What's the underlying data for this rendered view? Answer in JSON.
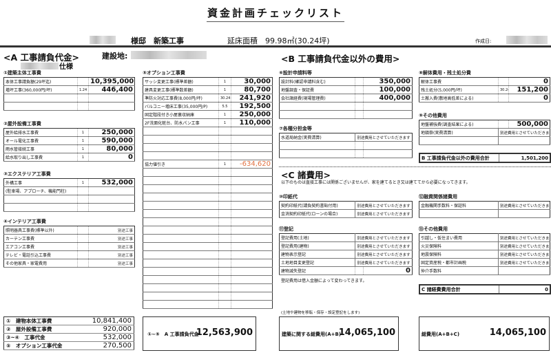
{
  "header": {
    "title": "資金計画チェックリスト",
    "project": "様邸　新築工事",
    "floor_area": "延床面積　99.98㎡(30.24坪)",
    "created_label": "作成日:",
    "site_label": "建設地:",
    "spec_suffix": "仕様"
  },
  "section_a": {
    "heading": "<A 工事請負代金>"
  },
  "section_b": {
    "heading": "<B 工事請負代金以外の費用>"
  },
  "section_c": {
    "heading": "<C 諸費用>",
    "note": "以下のものは直接工事には関係ございませんが、家を建てるとき又は建ててから必要になってきます。"
  },
  "tables": [
    {
      "id": "s1",
      "title": "①建築主体工事費",
      "rows": [
        {
          "label": "本体工事請負額(29坪迄)",
          "qty": "",
          "value": "10,395,000"
        },
        {
          "label": "増坪工事(360,000円/坪)",
          "qty": "1.24",
          "value": "446,400"
        },
        {
          "label": "",
          "qty": "",
          "value": ""
        },
        {
          "label": "",
          "qty": "",
          "value": ""
        }
      ]
    },
    {
      "id": "s2",
      "title": "②屋外設備工事費",
      "rows": [
        {
          "label": "屋外給排水工事費",
          "qty": "1",
          "value": "250,000"
        },
        {
          "label": "オール電化工事費",
          "qty": "1",
          "value": "590,000"
        },
        {
          "label": "雨水管接続工事",
          "qty": "1",
          "value": "80,000"
        },
        {
          "label": "給水取り出し工事費",
          "qty": "1",
          "value": "0"
        }
      ]
    },
    {
      "id": "s3",
      "title": "③エクステリア工事費",
      "rows": [
        {
          "label": "外構工事",
          "qty": "1",
          "value": "532,000"
        },
        {
          "label": "(駐車場、アプローチ、機能門柱)",
          "qty": "",
          "value": ""
        },
        {
          "label": "",
          "qty": "",
          "value": ""
        },
        {
          "label": "",
          "qty": "",
          "value": ""
        }
      ]
    },
    {
      "id": "s4",
      "title": "④インテリア工事費",
      "rows": [
        {
          "label": "照明器具工事費(標準以外)",
          "qty": "",
          "value": "別途工事",
          "note": true
        },
        {
          "label": "カーテン工事費",
          "qty": "",
          "value": "別途工事",
          "note": true
        },
        {
          "label": "エアコン工事費",
          "qty": "",
          "value": "別途工事",
          "note": true
        },
        {
          "label": "テレビ・電話引込工事費",
          "qty": "",
          "value": "別途工事",
          "note": true
        },
        {
          "label": "その他家具・家電費用",
          "qty": "",
          "value": "別途工事",
          "note": true
        }
      ]
    },
    {
      "id": "s5",
      "title": "⑤オプション工事費",
      "rows": [
        {
          "label": "サッシ変更工事(標準差額)",
          "qty": "1",
          "value": "30,000"
        },
        {
          "label": "建具変更工事(標準数差額)",
          "qty": "1",
          "value": "80,700"
        },
        {
          "label": "準防火対応工事費(8,000円/坪)",
          "qty": "30.24",
          "value": "241,920"
        },
        {
          "label": "バルコニー増床工事(35,000円/P)",
          "qty": "5.5",
          "value": "192,500"
        },
        {
          "label": "固定階段付き小屋裏収納庫",
          "qty": "1",
          "value": "250,000"
        },
        {
          "label": "2F洗面化粧台、防水パン工事",
          "qty": "1",
          "value": "110,000"
        },
        {
          "label": "",
          "qty": "",
          "value": ""
        },
        {
          "label": "",
          "qty": "",
          "value": ""
        },
        {
          "label": "",
          "qty": "",
          "value": ""
        },
        {
          "label": "",
          "qty": "",
          "value": ""
        },
        {
          "label": "協力値引き",
          "qty": "1",
          "value": "-634,620",
          "negative": true
        },
        {
          "label": "",
          "qty": "",
          "value": ""
        },
        {
          "label": "",
          "qty": "",
          "value": ""
        },
        {
          "label": "",
          "qty": "",
          "value": ""
        },
        {
          "label": "",
          "qty": "",
          "value": ""
        },
        {
          "label": "",
          "qty": "",
          "value": ""
        },
        {
          "label": "",
          "qty": "",
          "value": ""
        },
        {
          "label": "",
          "qty": "",
          "value": ""
        },
        {
          "label": "",
          "qty": "",
          "value": ""
        },
        {
          "label": "",
          "qty": "",
          "value": ""
        },
        {
          "label": "",
          "qty": "",
          "value": ""
        },
        {
          "label": "",
          "qty": "",
          "value": ""
        },
        {
          "label": "",
          "qty": "",
          "value": ""
        },
        {
          "label": "",
          "qty": "",
          "value": ""
        },
        {
          "label": "",
          "qty": "",
          "value": ""
        },
        {
          "label": "",
          "qty": "",
          "value": ""
        },
        {
          "label": "",
          "qty": "",
          "value": ""
        },
        {
          "label": "",
          "qty": "",
          "value": ""
        }
      ]
    },
    {
      "id": "s6",
      "title": "⑥設計申請料等",
      "rows": [
        {
          "label": "設計料(確認申請料含む)",
          "qty": "",
          "value": "350,000"
        },
        {
          "label": "地盤調査・保証費",
          "qty": "",
          "value": "100,000"
        },
        {
          "label": "会社諸経費(現場管理費)",
          "qty": "",
          "value": "400,000"
        },
        {
          "label": "",
          "qty": "",
          "value": ""
        },
        {
          "label": "",
          "qty": "",
          "value": ""
        }
      ]
    },
    {
      "id": "s7",
      "title": "⑦各種分担金等",
      "rows": [
        {
          "label": "水道局納金(実費清算)",
          "qty": "",
          "value": "別途費用とさせていただきます",
          "span": true
        },
        {
          "label": "",
          "qty": "",
          "value": ""
        },
        {
          "label": "",
          "qty": "",
          "value": ""
        }
      ]
    },
    {
      "id": "s8",
      "title": "⑧解体費用・残土処分費",
      "rows": [
        {
          "label": "解体工事費",
          "qty": "",
          "value": "0"
        },
        {
          "label": "残土処分(5,000円/坪)",
          "qty": "30.24",
          "value": "151,200"
        },
        {
          "label": "土搬入費(敷地高低差による)",
          "qty": "",
          "value": "0"
        }
      ]
    },
    {
      "id": "s9",
      "title": "⑨その他費用",
      "rows": [
        {
          "label": "地盤補強費(調査結果による)",
          "qty": "",
          "value": "500,000"
        },
        {
          "label": "地鎮祭(実費清算)",
          "qty": "",
          "value": "別途費用とさせていただきます",
          "span": true
        },
        {
          "label": "",
          "qty": "",
          "value": "",
          "span": true
        }
      ]
    },
    {
      "id": "sb",
      "title": "",
      "total": true,
      "rows": [
        {
          "label": "B 工事請負代金以外の費用合計",
          "qty": "",
          "value": "1,501,200",
          "span": true,
          "bold": true
        }
      ]
    },
    {
      "id": "s10",
      "title": "⑩印紙代",
      "rows": [
        {
          "label": "契約印紙代(請負契約書貼付用)",
          "qty": "",
          "value": "別途費用とさせていただきます",
          "span": true
        },
        {
          "label": "金消契約印紙代(ローンの場合)",
          "qty": "",
          "value": "別途費用とさせていただきます",
          "span": true
        }
      ]
    },
    {
      "id": "s11",
      "title": "⑪登記",
      "rows": [
        {
          "label": "登記費用(土地)",
          "qty": "",
          "value": "別途費用とさせていただきます",
          "span": true
        },
        {
          "label": "登記費用(建物)",
          "qty": "",
          "value": "別途費用とさせていただきます",
          "span": true
        },
        {
          "label": "建物表示登記",
          "qty": "",
          "value": "別途費用とさせていただきます",
          "span": true
        },
        {
          "label": "土地地目変更登記",
          "qty": "",
          "value": "別途費用とさせていただきます",
          "span": true
        },
        {
          "label": "建物滅失登記",
          "qty": "",
          "value": "0"
        }
      ]
    },
    {
      "id": "s12",
      "title": "⑫融資関係諸費用",
      "rows": [
        {
          "label": "金融機関手数料・保証料",
          "qty": "",
          "value": "別途費用とさせていただきます",
          "span": true
        },
        {
          "label": "",
          "qty": "",
          "value": "",
          "span": true
        }
      ]
    },
    {
      "id": "s13",
      "title": "⑬その他費用",
      "rows": [
        {
          "label": "引越し・仮住まい費用",
          "qty": "",
          "value": "別途費用とさせていただきます",
          "span": true
        },
        {
          "label": "火災保険料",
          "qty": "",
          "value": "別途費用とさせていただきます",
          "span": true
        },
        {
          "label": "地震保険料",
          "qty": "",
          "value": "別途費用とさせていただきます",
          "span": true
        },
        {
          "label": "固定資産税・都市計画税",
          "qty": "",
          "value": "別途費用とさせていただきます",
          "span": true
        },
        {
          "label": "仲介手数料",
          "qty": "",
          "value": "",
          "span": true
        }
      ]
    },
    {
      "id": "sc",
      "title": "",
      "total": true,
      "rows": [
        {
          "label": "C 諸経費費用合計",
          "qty": "",
          "value": "0",
          "span": true,
          "bold": true
        }
      ]
    }
  ],
  "notes": {
    "registration": "登記費用は借入金額によって変わってきます。",
    "bottom": "(土地や建物を移転・保存・設定登記をします)"
  },
  "summary": [
    {
      "label": "①　建物本体工事費",
      "value": "10,841,400"
    },
    {
      "label": "②　屋外設備工事費",
      "value": "920,000"
    },
    {
      "label": "③~④　工事代金",
      "value": "532,000"
    },
    {
      "label": "⑤　オプション工事代金",
      "value": "270,500"
    }
  ],
  "totals": {
    "a": {
      "label": "①~⑤　A 工事請負代金",
      "value": "12,563,900"
    },
    "ab": {
      "label": "建築に関する総費用(A+B)",
      "value": "14,065,100"
    },
    "abc": {
      "label": "総費用(A+B+C)",
      "value": "14,065,100"
    }
  },
  "colors": {
    "negative": "#e07040",
    "border": "#333333"
  }
}
